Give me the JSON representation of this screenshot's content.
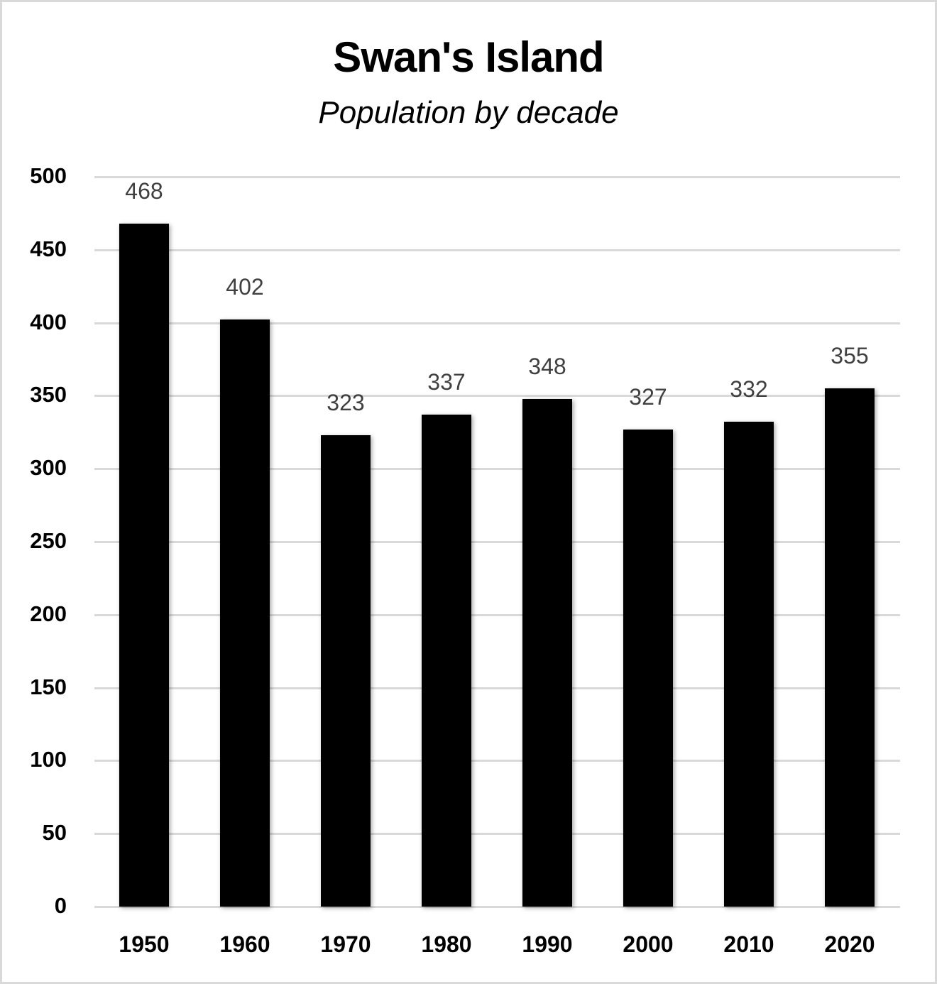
{
  "chart_data": {
    "type": "bar",
    "title": "Swan's Island",
    "subtitle": "Population by decade",
    "xlabel": "",
    "ylabel": "",
    "categories": [
      "1950",
      "1960",
      "1970",
      "1980",
      "1990",
      "2000",
      "2010",
      "2020"
    ],
    "values": [
      468,
      402,
      323,
      337,
      348,
      327,
      332,
      355
    ],
    "value_labels": [
      "468",
      "402",
      "323",
      "337",
      "348",
      "327",
      "332",
      "355"
    ],
    "ylim": [
      0,
      500
    ],
    "yticks": [
      "0",
      "50",
      "100",
      "150",
      "200",
      "250",
      "300",
      "350",
      "400",
      "450",
      "500"
    ],
    "grid": true,
    "legend": "none",
    "bar_color": "#000000",
    "label_color": "#404040",
    "grid_color": "#d9d9d9"
  }
}
